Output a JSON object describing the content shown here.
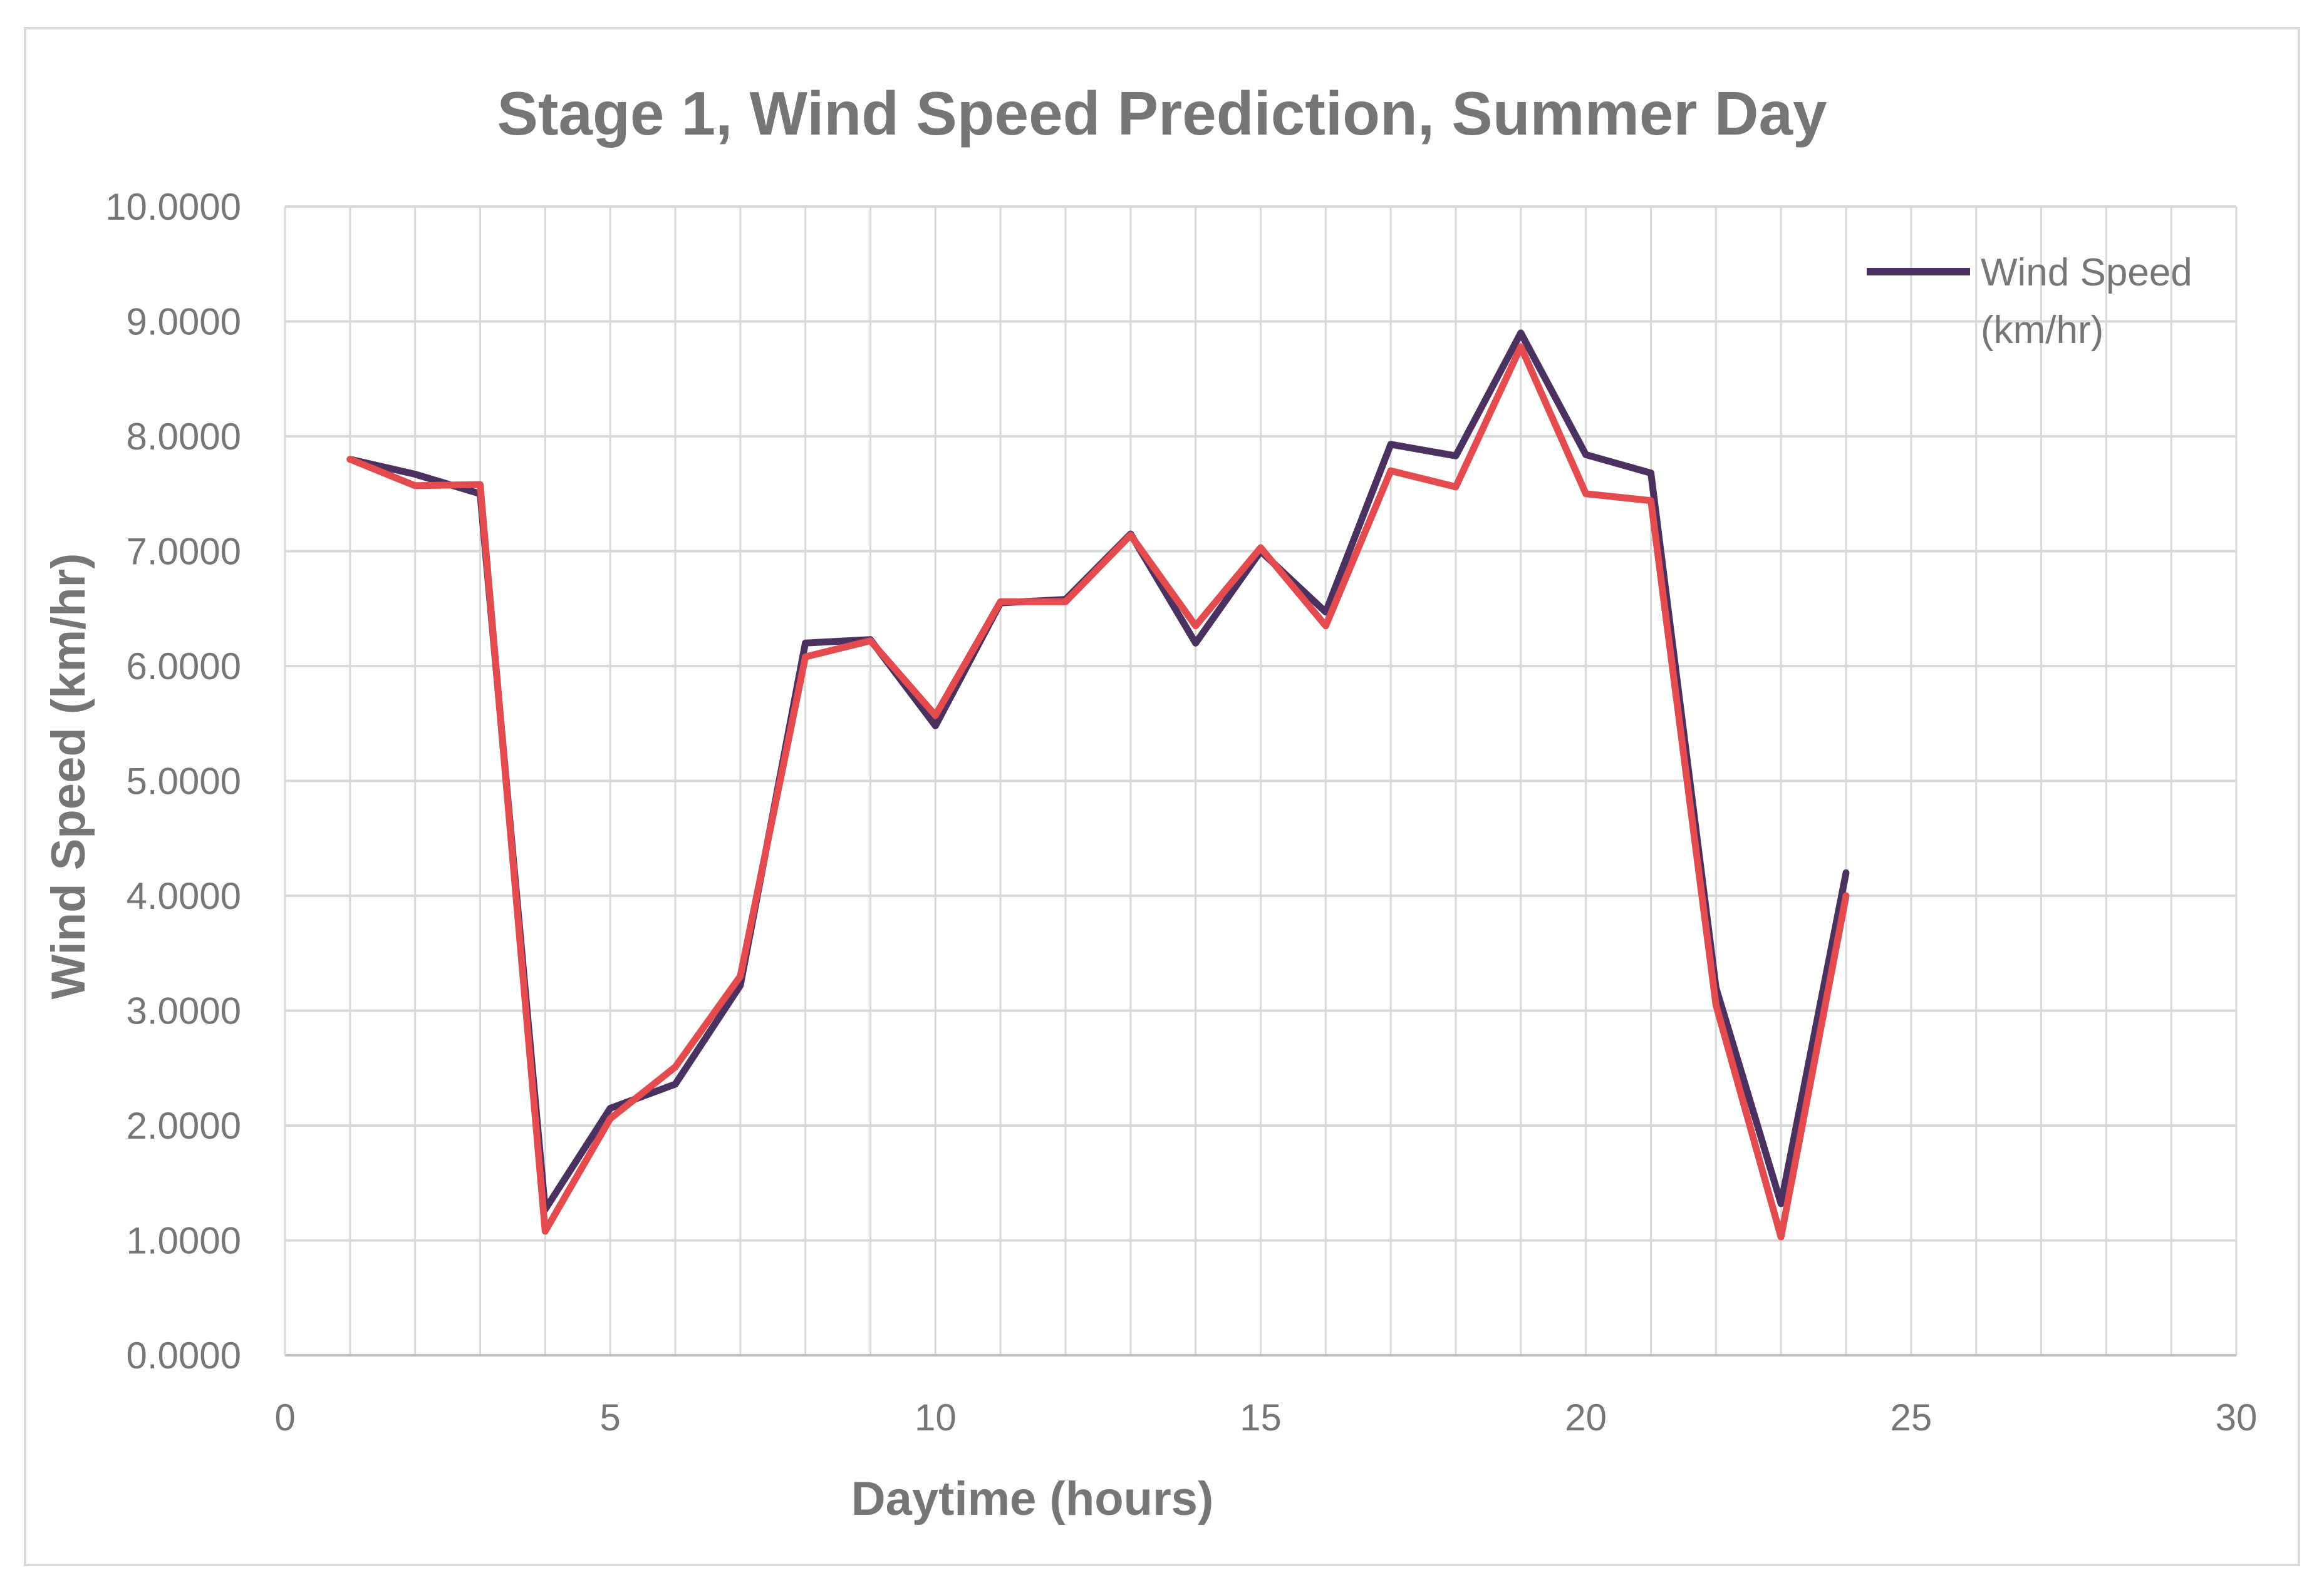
{
  "chart_data": {
    "type": "line",
    "title": "Stage 1, Wind Speed Prediction, Summer Day",
    "xlabel": "Daytime (hours)",
    "ylabel": "Wind Speed (km/hr)",
    "xlim": [
      0,
      30
    ],
    "ylim": [
      0,
      10
    ],
    "x_ticks": [
      "0",
      "5",
      "10",
      "15",
      "20",
      "25",
      "30"
    ],
    "y_ticks": [
      "0.0000",
      "1.0000",
      "2.0000",
      "3.0000",
      "4.0000",
      "5.0000",
      "6.0000",
      "7.0000",
      "8.0000",
      "9.0000",
      "10.0000"
    ],
    "grid": "on",
    "legend": {
      "placement": "top-right",
      "entries": [
        {
          "label_line1": "Wind Speed",
          "label_line2": "(km/hr)",
          "series_index": 0
        }
      ]
    },
    "x": [
      1,
      2,
      3,
      4,
      5,
      6,
      7,
      8,
      9,
      10,
      11,
      12,
      13,
      14,
      15,
      16,
      17,
      18,
      19,
      20,
      21,
      22,
      23,
      24
    ],
    "series": [
      {
        "name": "Wind Speed (km/hr)",
        "color": "#4b3160",
        "values": [
          7.8,
          7.67,
          7.5,
          1.27,
          2.15,
          2.36,
          3.22,
          6.2,
          6.23,
          5.48,
          6.55,
          6.58,
          7.15,
          6.2,
          7.0,
          6.47,
          7.93,
          7.83,
          8.9,
          7.84,
          7.68,
          3.2,
          1.32,
          4.2
        ]
      },
      {
        "color": "#e34b4e",
        "values": [
          7.8,
          7.57,
          7.58,
          1.08,
          2.06,
          2.51,
          3.3,
          6.08,
          6.22,
          5.57,
          6.56,
          6.56,
          7.14,
          6.35,
          7.03,
          6.35,
          7.7,
          7.56,
          8.78,
          7.5,
          7.44,
          3.05,
          1.03,
          4.0
        ]
      }
    ]
  }
}
